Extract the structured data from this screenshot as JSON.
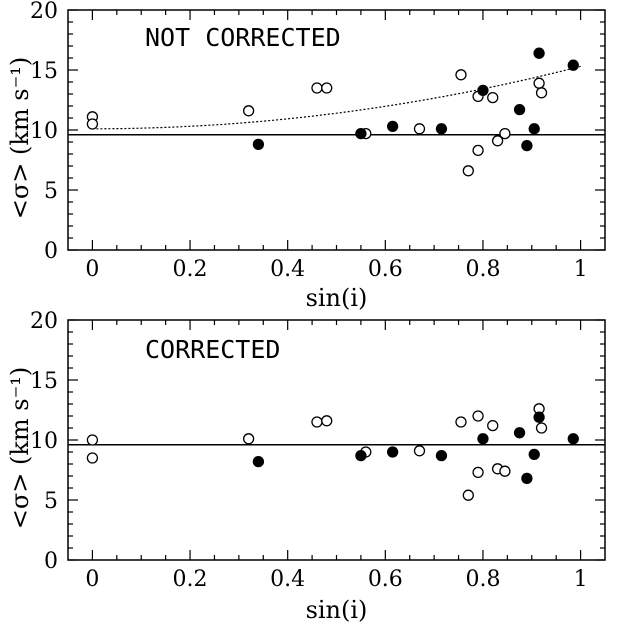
{
  "chart_data": [
    {
      "type": "scatter",
      "title": "NOT CORRECTED",
      "xlabel": "sin(i)",
      "ylabel": "<σ> (km s⁻¹)",
      "xlim": [
        -0.05,
        1.05
      ],
      "ylim": [
        0,
        20
      ],
      "xticks": [
        "0",
        "0.2",
        "0.4",
        "0.6",
        "0.8",
        "1"
      ],
      "yticks": [
        "0",
        "5",
        "10",
        "15",
        "20"
      ],
      "reference_line_y": 9.6,
      "trend_curve": {
        "y_at_0": 10.1,
        "y_at_1": 15.3,
        "form": "quadratic"
      },
      "series": [
        {
          "marker": "open",
          "points": [
            [
              0.0,
              11.1
            ],
            [
              0.0,
              10.5
            ],
            [
              0.32,
              11.6
            ],
            [
              0.46,
              13.5
            ],
            [
              0.48,
              13.5
            ],
            [
              0.56,
              9.7
            ],
            [
              0.67,
              10.1
            ],
            [
              0.755,
              14.6
            ],
            [
              0.77,
              6.6
            ],
            [
              0.79,
              8.3
            ],
            [
              0.79,
              12.8
            ],
            [
              0.82,
              12.7
            ],
            [
              0.83,
              9.1
            ],
            [
              0.845,
              9.7
            ],
            [
              0.915,
              13.9
            ],
            [
              0.92,
              13.1
            ]
          ]
        },
        {
          "marker": "filled",
          "points": [
            [
              0.34,
              8.8
            ],
            [
              0.55,
              9.7
            ],
            [
              0.615,
              10.3
            ],
            [
              0.715,
              10.1
            ],
            [
              0.8,
              13.3
            ],
            [
              0.875,
              11.7
            ],
            [
              0.89,
              8.7
            ],
            [
              0.905,
              10.1
            ],
            [
              0.915,
              16.4
            ],
            [
              0.985,
              15.4
            ]
          ]
        }
      ]
    },
    {
      "type": "scatter",
      "title": "CORRECTED",
      "xlabel": "sin(i)",
      "ylabel": "<σ> (km s⁻¹)",
      "xlim": [
        -0.05,
        1.05
      ],
      "ylim": [
        0,
        20
      ],
      "xticks": [
        "0",
        "0.2",
        "0.4",
        "0.6",
        "0.8",
        "1"
      ],
      "yticks": [
        "0",
        "5",
        "10",
        "15",
        "20"
      ],
      "reference_line_y": 9.6,
      "series": [
        {
          "marker": "open",
          "points": [
            [
              0.0,
              10.0
            ],
            [
              0.0,
              8.5
            ],
            [
              0.32,
              10.1
            ],
            [
              0.46,
              11.5
            ],
            [
              0.48,
              11.6
            ],
            [
              0.56,
              9.0
            ],
            [
              0.67,
              9.1
            ],
            [
              0.755,
              11.5
            ],
            [
              0.77,
              5.4
            ],
            [
              0.79,
              7.3
            ],
            [
              0.79,
              12.0
            ],
            [
              0.82,
              11.2
            ],
            [
              0.83,
              7.6
            ],
            [
              0.845,
              7.4
            ],
            [
              0.915,
              12.6
            ],
            [
              0.92,
              11.0
            ]
          ]
        },
        {
          "marker": "filled",
          "points": [
            [
              0.34,
              8.2
            ],
            [
              0.55,
              8.7
            ],
            [
              0.615,
              9.0
            ],
            [
              0.715,
              8.7
            ],
            [
              0.8,
              10.1
            ],
            [
              0.875,
              10.6
            ],
            [
              0.89,
              6.8
            ],
            [
              0.905,
              8.8
            ],
            [
              0.915,
              11.9
            ],
            [
              0.985,
              10.1
            ]
          ]
        }
      ]
    }
  ]
}
